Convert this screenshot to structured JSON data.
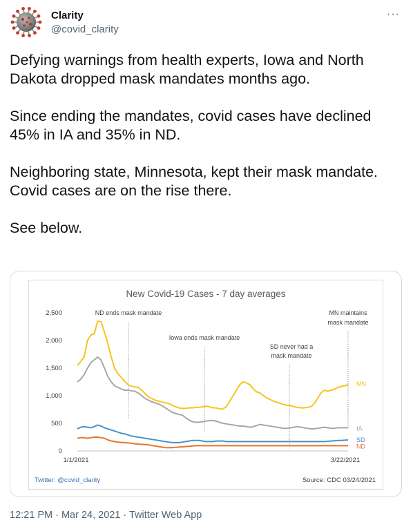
{
  "tweet": {
    "author_name": "Clarity",
    "handle": "@covid_clarity",
    "more_label": "···",
    "paragraphs": [
      "Defying warnings from health experts, Iowa and North Dakota dropped mask mandates months ago.",
      "Since ending the mandates, covid cases have declined 45% in IA and 35% in ND.",
      "Neighboring state, Minnesota, kept their mask mandate.\nCovid cases are on the rise there.",
      "See below."
    ],
    "timestamp": "12:21 PM · Mar 24, 2021 · Twitter Web App",
    "avatar_icon": "coronavirus-icon"
  },
  "chart_data": {
    "type": "line",
    "title": "New Covid-19 Cases - 7 day averages",
    "x_labels": [
      "1/1/2021",
      "3/22/2021"
    ],
    "ylim": [
      0,
      2500
    ],
    "yticks": [
      "0",
      "500",
      "1,000",
      "1,500",
      "2,000",
      "2,500"
    ],
    "grid": false,
    "credit": "Twitter: @covid_clarity",
    "source": "Source: CDC 03/24/2021",
    "annotations": [
      {
        "text": [
          "ND ends mask mandate"
        ],
        "day": 11
      },
      {
        "text": [
          "Iowa ends mask mandate"
        ],
        "day": 36
      },
      {
        "text": [
          "SD never had a",
          "mask mandate"
        ],
        "day": 0
      },
      {
        "text": [
          "MN maintains",
          "mask mandate"
        ],
        "day": 75
      }
    ],
    "series": [
      {
        "name": "MN",
        "color": "#f5c518",
        "values": [
          1550,
          1620,
          1700,
          2000,
          2100,
          2120,
          2350,
          2340,
          2150,
          1950,
          1700,
          1500,
          1400,
          1330,
          1260,
          1200,
          1170,
          1160,
          1150,
          1100,
          1040,
          980,
          950,
          920,
          900,
          890,
          870,
          860,
          830,
          800,
          780,
          770,
          770,
          780,
          780,
          790,
          790,
          800,
          810,
          800,
          780,
          780,
          760,
          760,
          800,
          900,
          1000,
          1100,
          1200,
          1250,
          1230,
          1200,
          1120,
          1070,
          1050,
          1000,
          960,
          930,
          900,
          880,
          860,
          840,
          830,
          820,
          800,
          790,
          780,
          780,
          790,
          800,
          860,
          950,
          1050,
          1100,
          1080,
          1100,
          1120,
          1150,
          1170,
          1180,
          1200
        ]
      },
      {
        "name": "IA",
        "color": "#a6a6a6",
        "values": [
          1250,
          1300,
          1380,
          1500,
          1600,
          1650,
          1700,
          1650,
          1500,
          1350,
          1250,
          1180,
          1150,
          1120,
          1100,
          1100,
          1090,
          1080,
          1050,
          1000,
          950,
          920,
          890,
          870,
          850,
          820,
          780,
          740,
          700,
          680,
          660,
          650,
          600,
          560,
          530,
          520,
          520,
          530,
          540,
          550,
          550,
          540,
          520,
          500,
          490,
          480,
          470,
          460,
          450,
          450,
          440,
          430,
          440,
          460,
          480,
          470,
          460,
          450,
          440,
          430,
          420,
          410,
          410,
          420,
          430,
          440,
          430,
          420,
          410,
          400,
          400,
          410,
          420,
          430,
          420,
          410,
          410,
          420,
          420,
          420,
          420
        ]
      },
      {
        "name": "SD",
        "color": "#4a90c8",
        "values": [
          400,
          430,
          440,
          430,
          420,
          440,
          470,
          450,
          420,
          400,
          380,
          360,
          340,
          320,
          310,
          290,
          270,
          260,
          250,
          240,
          230,
          220,
          210,
          200,
          190,
          180,
          170,
          160,
          150,
          150,
          150,
          160,
          170,
          180,
          190,
          190,
          190,
          180,
          170,
          170,
          170,
          180,
          180,
          180,
          170,
          170,
          170,
          170,
          170,
          170,
          170,
          170,
          170,
          170,
          170,
          170,
          170,
          170,
          170,
          170,
          170,
          170,
          170,
          170,
          170,
          170,
          170,
          170,
          170,
          170,
          170,
          170,
          170,
          170,
          175,
          180,
          185,
          190,
          190,
          195,
          200
        ]
      },
      {
        "name": "ND",
        "color": "#e8722a",
        "values": [
          230,
          240,
          240,
          230,
          240,
          250,
          250,
          240,
          230,
          200,
          180,
          170,
          160,
          155,
          150,
          145,
          140,
          130,
          125,
          120,
          115,
          110,
          100,
          90,
          80,
          70,
          60,
          60,
          60,
          65,
          70,
          75,
          80,
          85,
          90,
          95,
          95,
          95,
          95,
          95,
          95,
          95,
          95,
          95,
          95,
          95,
          95,
          95,
          95,
          95,
          95,
          95,
          95,
          95,
          95,
          95,
          95,
          95,
          95,
          95,
          95,
          95,
          95,
          95,
          95,
          95,
          95,
          95,
          95,
          95,
          95,
          95,
          95,
          95,
          95,
          95,
          95,
          95,
          95,
          95,
          95
        ]
      }
    ]
  }
}
